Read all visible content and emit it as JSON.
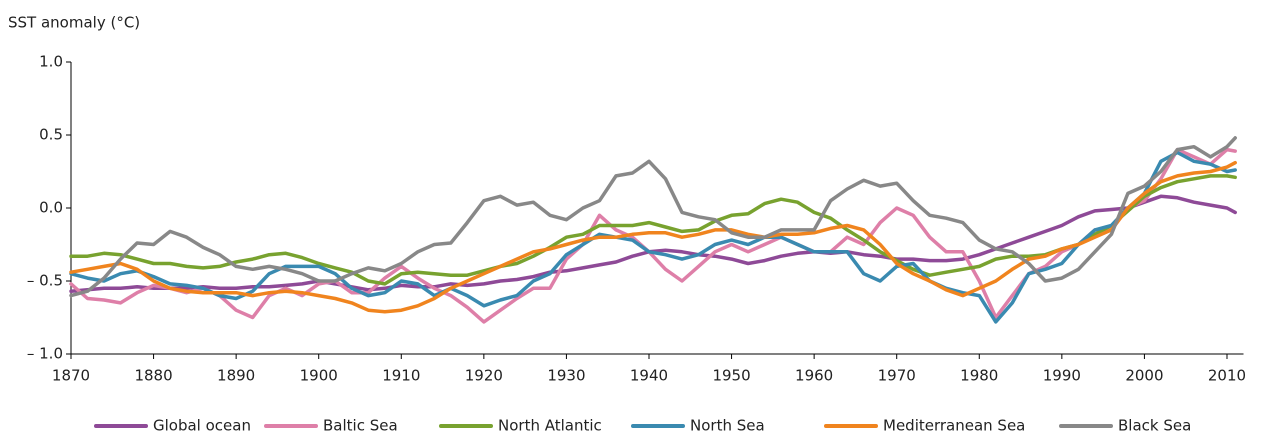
{
  "chart_data": {
    "type": "line",
    "y_label": "SST anomaly (°C)",
    "x": [
      1870,
      1872,
      1874,
      1876,
      1878,
      1880,
      1882,
      1884,
      1886,
      1888,
      1890,
      1892,
      1894,
      1896,
      1898,
      1900,
      1902,
      1904,
      1906,
      1908,
      1910,
      1912,
      1914,
      1916,
      1918,
      1920,
      1922,
      1924,
      1926,
      1928,
      1930,
      1932,
      1934,
      1936,
      1938,
      1940,
      1942,
      1944,
      1946,
      1948,
      1950,
      1952,
      1954,
      1956,
      1958,
      1960,
      1962,
      1964,
      1966,
      1968,
      1970,
      1972,
      1974,
      1976,
      1978,
      1980,
      1982,
      1984,
      1986,
      1988,
      1990,
      1992,
      1994,
      1996,
      1998,
      2000,
      2002,
      2004,
      2006,
      2008,
      2010,
      2011
    ],
    "xlim": [
      1870,
      2012
    ],
    "xticks": [
      1870,
      1880,
      1890,
      1900,
      1910,
      1920,
      1930,
      1940,
      1950,
      1960,
      1970,
      1980,
      1990,
      2000,
      2010
    ],
    "ylim": [
      -1,
      1
    ],
    "yticks": [
      {
        "value": 1,
        "label": "1.0"
      },
      {
        "value": 0.5,
        "label": "0.5"
      },
      {
        "value": 0,
        "label": "0.0"
      },
      {
        "value": -0.5,
        "label": "– 0.5"
      },
      {
        "value": -1,
        "label": "– 1.0"
      }
    ],
    "grid": false,
    "legend": "bottom",
    "series": [
      {
        "name": "Global ocean",
        "color": "#8e4a97",
        "values": [
          -0.57,
          -0.56,
          -0.55,
          -0.55,
          -0.54,
          -0.55,
          -0.55,
          -0.55,
          -0.54,
          -0.55,
          -0.55,
          -0.54,
          -0.54,
          -0.53,
          -0.52,
          -0.5,
          -0.52,
          -0.54,
          -0.56,
          -0.55,
          -0.53,
          -0.54,
          -0.54,
          -0.52,
          -0.53,
          -0.52,
          -0.5,
          -0.49,
          -0.47,
          -0.44,
          -0.43,
          -0.41,
          -0.39,
          -0.37,
          -0.33,
          -0.3,
          -0.29,
          -0.3,
          -0.32,
          -0.33,
          -0.35,
          -0.38,
          -0.36,
          -0.33,
          -0.31,
          -0.3,
          -0.31,
          -0.3,
          -0.32,
          -0.33,
          -0.35,
          -0.35,
          -0.36,
          -0.36,
          -0.35,
          -0.32,
          -0.28,
          -0.24,
          -0.2,
          -0.16,
          -0.12,
          -0.06,
          -0.02,
          -0.01,
          0.0,
          0.04,
          0.08,
          0.07,
          0.04,
          0.02,
          0.0,
          -0.03
        ]
      },
      {
        "name": "Baltic Sea",
        "color": "#de7fa8",
        "values": [
          -0.52,
          -0.62,
          -0.63,
          -0.65,
          -0.58,
          -0.53,
          -0.55,
          -0.58,
          -0.55,
          -0.6,
          -0.7,
          -0.75,
          -0.6,
          -0.55,
          -0.6,
          -0.52,
          -0.5,
          -0.58,
          -0.58,
          -0.48,
          -0.4,
          -0.48,
          -0.55,
          -0.6,
          -0.68,
          -0.78,
          -0.7,
          -0.62,
          -0.55,
          -0.55,
          -0.35,
          -0.25,
          -0.05,
          -0.15,
          -0.2,
          -0.3,
          -0.42,
          -0.5,
          -0.4,
          -0.3,
          -0.25,
          -0.3,
          -0.25,
          -0.2,
          -0.25,
          -0.3,
          -0.3,
          -0.2,
          -0.25,
          -0.1,
          0.0,
          -0.05,
          -0.2,
          -0.3,
          -0.3,
          -0.5,
          -0.75,
          -0.6,
          -0.45,
          -0.4,
          -0.3,
          -0.25,
          -0.15,
          -0.15,
          0.0,
          0.05,
          0.2,
          0.4,
          0.35,
          0.3,
          0.4,
          0.39
        ]
      },
      {
        "name": "North Atlantic",
        "color": "#78a22f",
        "values": [
          -0.33,
          -0.33,
          -0.31,
          -0.32,
          -0.35,
          -0.38,
          -0.38,
          -0.4,
          -0.41,
          -0.4,
          -0.37,
          -0.35,
          -0.32,
          -0.31,
          -0.34,
          -0.38,
          -0.41,
          -0.44,
          -0.5,
          -0.52,
          -0.45,
          -0.44,
          -0.45,
          -0.46,
          -0.46,
          -0.43,
          -0.4,
          -0.38,
          -0.33,
          -0.27,
          -0.2,
          -0.18,
          -0.12,
          -0.12,
          -0.12,
          -0.1,
          -0.13,
          -0.16,
          -0.15,
          -0.09,
          -0.05,
          -0.04,
          0.03,
          0.06,
          0.04,
          -0.03,
          -0.07,
          -0.15,
          -0.22,
          -0.3,
          -0.36,
          -0.42,
          -0.46,
          -0.44,
          -0.42,
          -0.4,
          -0.35,
          -0.33,
          -0.33,
          -0.32,
          -0.28,
          -0.25,
          -0.18,
          -0.12,
          -0.02,
          0.08,
          0.14,
          0.18,
          0.2,
          0.22,
          0.22,
          0.21
        ]
      },
      {
        "name": "North Sea",
        "color": "#3a8ab0",
        "values": [
          -0.45,
          -0.48,
          -0.5,
          -0.45,
          -0.43,
          -0.47,
          -0.52,
          -0.53,
          -0.55,
          -0.6,
          -0.62,
          -0.57,
          -0.45,
          -0.4,
          -0.4,
          -0.4,
          -0.45,
          -0.55,
          -0.6,
          -0.58,
          -0.5,
          -0.52,
          -0.6,
          -0.55,
          -0.6,
          -0.67,
          -0.63,
          -0.6,
          -0.5,
          -0.45,
          -0.32,
          -0.25,
          -0.18,
          -0.2,
          -0.22,
          -0.3,
          -0.32,
          -0.35,
          -0.32,
          -0.25,
          -0.22,
          -0.25,
          -0.2,
          -0.2,
          -0.25,
          -0.3,
          -0.3,
          -0.3,
          -0.45,
          -0.5,
          -0.4,
          -0.38,
          -0.5,
          -0.55,
          -0.58,
          -0.6,
          -0.78,
          -0.65,
          -0.45,
          -0.42,
          -0.38,
          -0.25,
          -0.15,
          -0.12,
          0.0,
          0.1,
          0.32,
          0.38,
          0.32,
          0.3,
          0.25,
          0.26
        ]
      },
      {
        "name": "Mediterranean Sea",
        "color": "#f0841e",
        "values": [
          -0.44,
          -0.42,
          -0.4,
          -0.38,
          -0.42,
          -0.5,
          -0.55,
          -0.57,
          -0.58,
          -0.58,
          -0.58,
          -0.6,
          -0.58,
          -0.57,
          -0.58,
          -0.6,
          -0.62,
          -0.65,
          -0.7,
          -0.71,
          -0.7,
          -0.67,
          -0.62,
          -0.55,
          -0.5,
          -0.45,
          -0.4,
          -0.35,
          -0.3,
          -0.28,
          -0.25,
          -0.22,
          -0.2,
          -0.2,
          -0.18,
          -0.17,
          -0.17,
          -0.2,
          -0.18,
          -0.15,
          -0.15,
          -0.18,
          -0.2,
          -0.18,
          -0.18,
          -0.17,
          -0.14,
          -0.12,
          -0.15,
          -0.25,
          -0.38,
          -0.45,
          -0.5,
          -0.56,
          -0.6,
          -0.55,
          -0.5,
          -0.42,
          -0.35,
          -0.33,
          -0.28,
          -0.25,
          -0.2,
          -0.15,
          0.0,
          0.1,
          0.18,
          0.22,
          0.24,
          0.25,
          0.28,
          0.31
        ]
      },
      {
        "name": "Black Sea",
        "color": "#888888",
        "values": [
          -0.6,
          -0.57,
          -0.48,
          -0.35,
          -0.24,
          -0.25,
          -0.16,
          -0.2,
          -0.27,
          -0.32,
          -0.4,
          -0.42,
          -0.4,
          -0.42,
          -0.45,
          -0.5,
          -0.5,
          -0.45,
          -0.41,
          -0.43,
          -0.38,
          -0.3,
          -0.25,
          -0.24,
          -0.1,
          0.05,
          0.08,
          0.02,
          0.04,
          -0.05,
          -0.08,
          0.0,
          0.05,
          0.22,
          0.24,
          0.32,
          0.2,
          -0.03,
          -0.06,
          -0.08,
          -0.17,
          -0.2,
          -0.2,
          -0.15,
          -0.15,
          -0.15,
          0.05,
          0.13,
          0.19,
          0.15,
          0.17,
          0.05,
          -0.05,
          -0.07,
          -0.1,
          -0.22,
          -0.28,
          -0.3,
          -0.38,
          -0.5,
          -0.48,
          -0.42,
          -0.3,
          -0.18,
          0.1,
          0.15,
          0.25,
          0.4,
          0.42,
          0.35,
          0.42,
          0.48
        ]
      }
    ]
  }
}
